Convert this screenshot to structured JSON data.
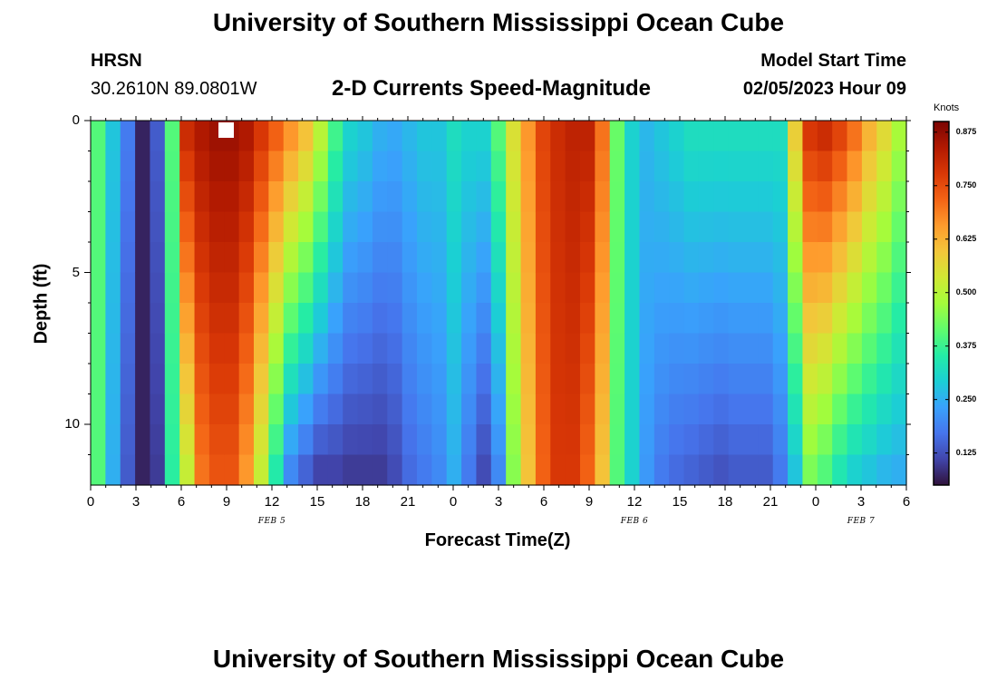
{
  "header": {
    "title": "University of Southern Mississippi Ocean Cube",
    "station_name": "HRSN",
    "station_coords": "30.2610N  89.0801W",
    "chart_title": "2-D Currents Speed-Magnitude",
    "model_label": "Model Start Time",
    "model_time": "02/05/2023 Hour 09"
  },
  "footer": {
    "title": "University of Southern Mississippi Ocean Cube"
  },
  "colors": {
    "colormap": [
      "#30123b",
      "#4145ab",
      "#4675ed",
      "#39a2fc",
      "#1bcfd4",
      "#24eca6",
      "#61fc6c",
      "#a4fc3b",
      "#d1e834",
      "#f3c63a",
      "#fe9b2d",
      "#f36315",
      "#d93806",
      "#b11901",
      "#7a0403"
    ],
    "marker": "#ffffff"
  },
  "chart_data": {
    "type": "heatmap",
    "title": "2-D Currents Speed-Magnitude",
    "xlabel": "Forecast Time(Z)",
    "ylabel": "Depth (ft)",
    "xlim": [
      0,
      54
    ],
    "ylim": [
      12,
      0
    ],
    "x_ticks": [
      0,
      3,
      6,
      9,
      12,
      15,
      18,
      21,
      24,
      27,
      30,
      33,
      36,
      39,
      42,
      45,
      48,
      51,
      54
    ],
    "x_tick_labels": [
      "0",
      "3",
      "6",
      "9",
      "12",
      "15",
      "18",
      "21",
      "0",
      "3",
      "6",
      "9",
      "12",
      "15",
      "18",
      "21",
      "0",
      "3",
      "6"
    ],
    "y_ticks": [
      0,
      5,
      10
    ],
    "y_tick_labels": [
      "0",
      "5",
      "10"
    ],
    "date_labels": [
      {
        "text": "FEB 5",
        "x": 12
      },
      {
        "text": "FEB 6",
        "x": 36
      },
      {
        "text": "FEB 7",
        "x": 51
      }
    ],
    "current_hour_marker": 9,
    "colorbar": {
      "label": "Knots",
      "range": [
        0.05,
        0.9
      ],
      "ticks": [
        0.125,
        0.25,
        0.375,
        0.5,
        0.625,
        0.75,
        0.875
      ],
      "tick_labels": [
        "0.125",
        "0.250",
        "0.375",
        "0.500",
        "0.625",
        "0.750",
        "0.875"
      ]
    },
    "depth_rows": [
      0.5,
      1.5,
      2.5,
      3.5,
      4.5,
      5.5,
      6.5,
      7.5,
      8.5,
      9.5,
      10.5,
      11.5
    ],
    "hours": [
      0,
      1,
      2,
      3,
      4,
      5,
      6,
      7,
      8,
      9,
      10,
      11,
      12,
      13,
      14,
      15,
      16,
      17,
      18,
      19,
      20,
      21,
      22,
      23,
      24,
      25,
      26,
      27,
      28,
      29,
      30,
      31,
      32,
      33,
      34,
      35,
      36,
      37,
      38,
      39,
      40,
      41,
      42,
      43,
      44,
      45,
      46,
      47,
      48,
      49,
      50,
      51,
      52,
      53,
      54
    ],
    "speed_profile_surface": [
      0.4,
      0.28,
      0.18,
      0.07,
      0.14,
      0.4,
      0.8,
      0.84,
      0.86,
      0.86,
      0.84,
      0.78,
      0.72,
      0.66,
      0.6,
      0.5,
      0.38,
      0.3,
      0.28,
      0.25,
      0.24,
      0.26,
      0.28,
      0.28,
      0.32,
      0.3,
      0.3,
      0.4,
      0.55,
      0.66,
      0.76,
      0.8,
      0.82,
      0.82,
      0.7,
      0.42,
      0.3,
      0.26,
      0.28,
      0.3,
      0.32,
      0.32,
      0.32,
      0.32,
      0.32,
      0.32,
      0.32,
      0.58,
      0.78,
      0.8,
      0.76,
      0.7,
      0.62,
      0.56,
      0.48
    ],
    "speed_profile_bottom": [
      0.4,
      0.25,
      0.14,
      0.07,
      0.1,
      0.36,
      0.52,
      0.7,
      0.74,
      0.74,
      0.66,
      0.52,
      0.35,
      0.2,
      0.15,
      0.11,
      0.11,
      0.1,
      0.1,
      0.1,
      0.12,
      0.16,
      0.18,
      0.2,
      0.25,
      0.18,
      0.12,
      0.2,
      0.45,
      0.6,
      0.72,
      0.78,
      0.78,
      0.72,
      0.6,
      0.4,
      0.3,
      0.22,
      0.18,
      0.16,
      0.15,
      0.14,
      0.13,
      0.14,
      0.14,
      0.14,
      0.18,
      0.28,
      0.44,
      0.4,
      0.34,
      0.3,
      0.28,
      0.26,
      0.25
    ]
  }
}
